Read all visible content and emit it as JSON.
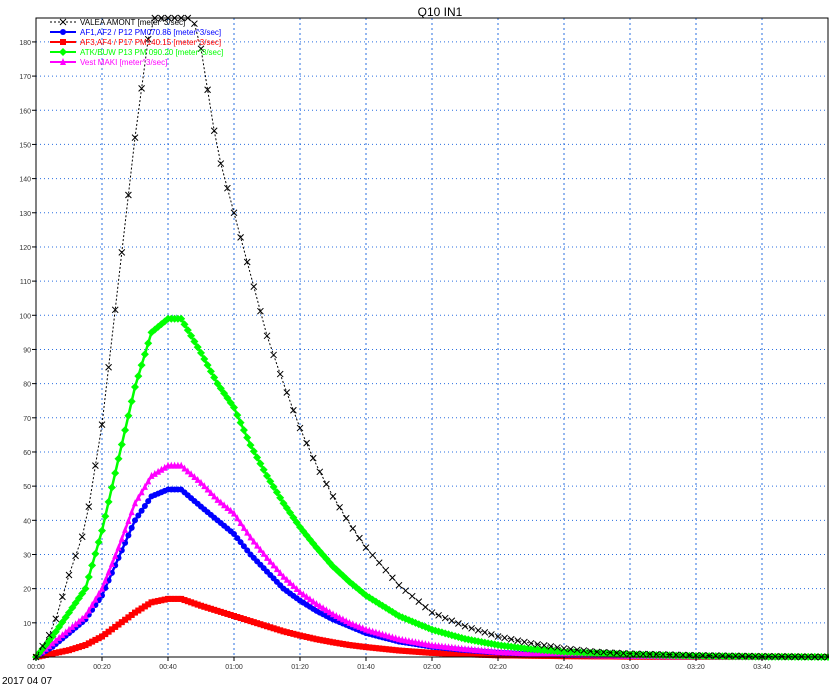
{
  "chart_data": {
    "type": "line",
    "title": "Q10 IN1",
    "xlabel": "",
    "ylabel": "",
    "date_label": "2017 04 07",
    "x_range_minutes": [
      0,
      240
    ],
    "ylim": [
      0,
      187
    ],
    "x_ticks": [
      {
        "minute": 0,
        "label": "00:00"
      },
      {
        "minute": 20,
        "label": "00:20"
      },
      {
        "minute": 40,
        "label": "00:40"
      },
      {
        "minute": 60,
        "label": "01:00"
      },
      {
        "minute": 80,
        "label": "01:20"
      },
      {
        "minute": 100,
        "label": "01:40"
      },
      {
        "minute": 120,
        "label": "02:00"
      },
      {
        "minute": 140,
        "label": "02:20"
      },
      {
        "minute": 160,
        "label": "02:40"
      },
      {
        "minute": 180,
        "label": "03:00"
      },
      {
        "minute": 200,
        "label": "03:20"
      },
      {
        "minute": 220,
        "label": "03:40"
      }
    ],
    "y_ticks": [
      10,
      20,
      30,
      40,
      50,
      60,
      70,
      80,
      90,
      100,
      110,
      120,
      130,
      140,
      150,
      160,
      170,
      180
    ],
    "grid": {
      "vertical": true,
      "horizontal": true,
      "style": "dotted blue"
    },
    "legend_position": "top-left",
    "series": [
      {
        "name": "VALEA AMONT [meter^3/sec]",
        "color": "#000000",
        "marker": "x",
        "line": "dotted",
        "points": [
          [
            0,
            0
          ],
          [
            5,
            8
          ],
          [
            10,
            24
          ],
          [
            15,
            38
          ],
          [
            20,
            68
          ],
          [
            25,
            110
          ],
          [
            30,
            152
          ],
          [
            35,
            188
          ],
          [
            40,
            200
          ],
          [
            44,
            200
          ],
          [
            50,
            178
          ],
          [
            55,
            148
          ],
          [
            60,
            130
          ],
          [
            65,
            112
          ],
          [
            70,
            94
          ],
          [
            75,
            80
          ],
          [
            80,
            67
          ],
          [
            85,
            56
          ],
          [
            90,
            47
          ],
          [
            95,
            39
          ],
          [
            100,
            32
          ],
          [
            110,
            21
          ],
          [
            120,
            13
          ],
          [
            130,
            9
          ],
          [
            140,
            6
          ],
          [
            150,
            4
          ],
          [
            160,
            2.5
          ],
          [
            170,
            1.5
          ],
          [
            180,
            1
          ],
          [
            200,
            0.5
          ],
          [
            220,
            0.2
          ],
          [
            240,
            0
          ]
        ]
      },
      {
        "name": "AF1,AF2 / P12 PM070.86 [meter^3/sec]",
        "color": "#0000ff",
        "marker": "circle",
        "line": "solid",
        "points": [
          [
            0,
            0
          ],
          [
            5,
            3
          ],
          [
            10,
            7
          ],
          [
            15,
            11
          ],
          [
            20,
            18
          ],
          [
            25,
            29
          ],
          [
            30,
            40
          ],
          [
            35,
            47
          ],
          [
            40,
            49
          ],
          [
            44,
            49
          ],
          [
            50,
            44
          ],
          [
            55,
            40
          ],
          [
            60,
            36
          ],
          [
            65,
            30
          ],
          [
            70,
            25
          ],
          [
            75,
            20
          ],
          [
            80,
            16.5
          ],
          [
            85,
            13.5
          ],
          [
            90,
            11
          ],
          [
            95,
            9
          ],
          [
            100,
            7
          ],
          [
            110,
            4.5
          ],
          [
            120,
            3
          ],
          [
            130,
            2
          ],
          [
            140,
            1.3
          ],
          [
            150,
            0.9
          ],
          [
            160,
            0.6
          ],
          [
            180,
            0.3
          ],
          [
            200,
            0.15
          ],
          [
            220,
            0.05
          ],
          [
            240,
            0
          ]
        ]
      },
      {
        "name": "AF3,AF4 / P17 PM140.15 [meter^3/sec]",
        "color": "#ff0000",
        "marker": "square",
        "line": "solid",
        "points": [
          [
            0,
            0
          ],
          [
            5,
            1
          ],
          [
            10,
            2
          ],
          [
            15,
            3.5
          ],
          [
            20,
            6
          ],
          [
            25,
            9.5
          ],
          [
            30,
            13
          ],
          [
            35,
            16
          ],
          [
            40,
            17
          ],
          [
            44,
            17
          ],
          [
            50,
            15
          ],
          [
            55,
            13.5
          ],
          [
            60,
            12
          ],
          [
            65,
            10.5
          ],
          [
            70,
            9
          ],
          [
            75,
            7.5
          ],
          [
            80,
            6.3
          ],
          [
            85,
            5.2
          ],
          [
            90,
            4.3
          ],
          [
            95,
            3.5
          ],
          [
            100,
            2.9
          ],
          [
            110,
            1.9
          ],
          [
            120,
            1.2
          ],
          [
            130,
            0.8
          ],
          [
            140,
            0.5
          ],
          [
            160,
            0.25
          ],
          [
            180,
            0.1
          ],
          [
            200,
            0.05
          ],
          [
            240,
            0
          ]
        ]
      },
      {
        "name": "ATK/BUW P13 PM 090.20 [meter^3/sec]",
        "color": "#00ff00",
        "marker": "diamond",
        "line": "solid",
        "points": [
          [
            0,
            0
          ],
          [
            5,
            6
          ],
          [
            10,
            13
          ],
          [
            15,
            20
          ],
          [
            20,
            37
          ],
          [
            25,
            58
          ],
          [
            30,
            79
          ],
          [
            35,
            95
          ],
          [
            40,
            99
          ],
          [
            44,
            99
          ],
          [
            50,
            89
          ],
          [
            55,
            80
          ],
          [
            60,
            73
          ],
          [
            65,
            62
          ],
          [
            70,
            53
          ],
          [
            75,
            45
          ],
          [
            80,
            38
          ],
          [
            85,
            32
          ],
          [
            90,
            26.5
          ],
          [
            95,
            22
          ],
          [
            100,
            18
          ],
          [
            110,
            12
          ],
          [
            120,
            8
          ],
          [
            130,
            5.3
          ],
          [
            140,
            3.5
          ],
          [
            150,
            2.3
          ],
          [
            160,
            1.5
          ],
          [
            180,
            0.7
          ],
          [
            200,
            0.3
          ],
          [
            220,
            0.1
          ],
          [
            240,
            0
          ]
        ]
      },
      {
        "name": "Vest MAKI [meter^3/sec]",
        "color": "#ff00ff",
        "marker": "triangle",
        "line": "solid",
        "points": [
          [
            0,
            0
          ],
          [
            5,
            4
          ],
          [
            10,
            8
          ],
          [
            15,
            12
          ],
          [
            20,
            20
          ],
          [
            25,
            32
          ],
          [
            30,
            45
          ],
          [
            35,
            53
          ],
          [
            40,
            56
          ],
          [
            44,
            56
          ],
          [
            50,
            51
          ],
          [
            55,
            46
          ],
          [
            60,
            42
          ],
          [
            65,
            35
          ],
          [
            70,
            29
          ],
          [
            75,
            23.5
          ],
          [
            80,
            19
          ],
          [
            85,
            15.5
          ],
          [
            90,
            12.5
          ],
          [
            95,
            10
          ],
          [
            100,
            8
          ],
          [
            110,
            5.2
          ],
          [
            120,
            3.4
          ],
          [
            130,
            2.3
          ],
          [
            140,
            1.5
          ],
          [
            150,
            1
          ],
          [
            160,
            0.7
          ],
          [
            180,
            0.35
          ],
          [
            200,
            0.15
          ],
          [
            220,
            0.05
          ],
          [
            240,
            0
          ]
        ]
      }
    ]
  }
}
